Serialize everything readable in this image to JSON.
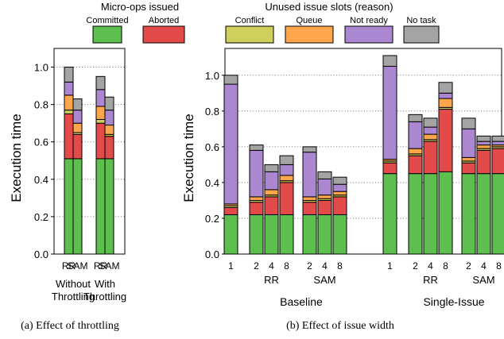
{
  "legend": {
    "ops_title": "Micro-ops issued",
    "slots_title": "Unused issue slots (reason)",
    "items": [
      {
        "key": "committed",
        "label": "Committed",
        "color": "#5cbf4e"
      },
      {
        "key": "aborted",
        "label": "Aborted",
        "color": "#e34a4a"
      },
      {
        "key": "conflict",
        "label": "Conflict",
        "color": "#cfcf5c"
      },
      {
        "key": "queue",
        "label": "Queue",
        "color": "#ffa64d"
      },
      {
        "key": "notready",
        "label": "Not ready",
        "color": "#ab87d1"
      },
      {
        "key": "notask",
        "label": "No task",
        "color": "#a4a4a4"
      }
    ]
  },
  "chart_data": [
    {
      "type": "bar",
      "stacked": true,
      "caption": "(a) Effect of throttling",
      "ylabel": "Execution time",
      "ylim": [
        0,
        1.1
      ],
      "yticks": [
        "0.0",
        "0.2",
        "0.4",
        "0.6",
        "0.8",
        "1.0"
      ],
      "grid": "horizontal dotted",
      "groups": [
        {
          "label": [
            "Without",
            "Throttling"
          ],
          "bars": [
            {
              "label": "RR",
              "values": [
                0.51,
                0.24,
                0.02,
                0.08,
                0.07,
                0.08
              ]
            },
            {
              "label": "SAM",
              "values": [
                0.51,
                0.13,
                0.01,
                0.05,
                0.07,
                0.06
              ]
            }
          ]
        },
        {
          "label": [
            "With",
            "Throttling"
          ],
          "bars": [
            {
              "label": "RR",
              "values": [
                0.51,
                0.19,
                0.02,
                0.07,
                0.09,
                0.07
              ]
            },
            {
              "label": "SAM",
              "values": [
                0.51,
                0.12,
                0.01,
                0.05,
                0.08,
                0.07
              ]
            }
          ]
        }
      ]
    },
    {
      "type": "bar",
      "stacked": true,
      "caption": "(b) Effect of issue width",
      "ylabel": "Execution time",
      "ylim": [
        0,
        1.15
      ],
      "yticks": [
        "0.0",
        "0.2",
        "0.4",
        "0.6",
        "0.8",
        "1.0"
      ],
      "grid": "horizontal dotted",
      "sections": [
        {
          "label": "Baseline",
          "groups": [
            {
              "label": "",
              "bars": [
                {
                  "label": "1",
                  "values": [
                    0.22,
                    0.04,
                    0.01,
                    0.01,
                    0.67,
                    0.05
                  ]
                }
              ]
            },
            {
              "label": "RR",
              "bars": [
                {
                  "label": "2",
                  "values": [
                    0.22,
                    0.07,
                    0.01,
                    0.02,
                    0.26,
                    0.03
                  ]
                },
                {
                  "label": "4",
                  "values": [
                    0.22,
                    0.1,
                    0.01,
                    0.03,
                    0.1,
                    0.04
                  ]
                },
                {
                  "label": "8",
                  "values": [
                    0.22,
                    0.18,
                    0.01,
                    0.03,
                    0.06,
                    0.05
                  ]
                }
              ]
            },
            {
              "label": "SAM",
              "bars": [
                {
                  "label": "2",
                  "values": [
                    0.22,
                    0.07,
                    0.01,
                    0.02,
                    0.25,
                    0.03
                  ]
                },
                {
                  "label": "4",
                  "values": [
                    0.22,
                    0.08,
                    0.01,
                    0.02,
                    0.09,
                    0.04
                  ]
                },
                {
                  "label": "8",
                  "values": [
                    0.22,
                    0.1,
                    0.01,
                    0.02,
                    0.04,
                    0.04
                  ]
                }
              ]
            }
          ]
        },
        {
          "label": "Single-Issue",
          "groups": [
            {
              "label": "",
              "bars": [
                {
                  "label": "1",
                  "values": [
                    0.45,
                    0.06,
                    0.01,
                    0.01,
                    0.52,
                    0.06
                  ]
                }
              ]
            },
            {
              "label": "RR",
              "bars": [
                {
                  "label": "2",
                  "values": [
                    0.45,
                    0.1,
                    0.01,
                    0.03,
                    0.15,
                    0.04
                  ]
                },
                {
                  "label": "4",
                  "values": [
                    0.45,
                    0.18,
                    0.01,
                    0.03,
                    0.04,
                    0.05
                  ]
                },
                {
                  "label": "8",
                  "values": [
                    0.46,
                    0.35,
                    0.01,
                    0.05,
                    0.03,
                    0.06
                  ]
                }
              ]
            },
            {
              "label": "SAM",
              "bars": [
                {
                  "label": "2",
                  "values": [
                    0.45,
                    0.06,
                    0.01,
                    0.02,
                    0.16,
                    0.06
                  ]
                },
                {
                  "label": "4",
                  "values": [
                    0.45,
                    0.13,
                    0.01,
                    0.02,
                    0.02,
                    0.03
                  ]
                },
                {
                  "label": "8",
                  "values": [
                    0.45,
                    0.14,
                    0.01,
                    0.01,
                    0.02,
                    0.03
                  ]
                }
              ]
            }
          ]
        }
      ]
    }
  ]
}
